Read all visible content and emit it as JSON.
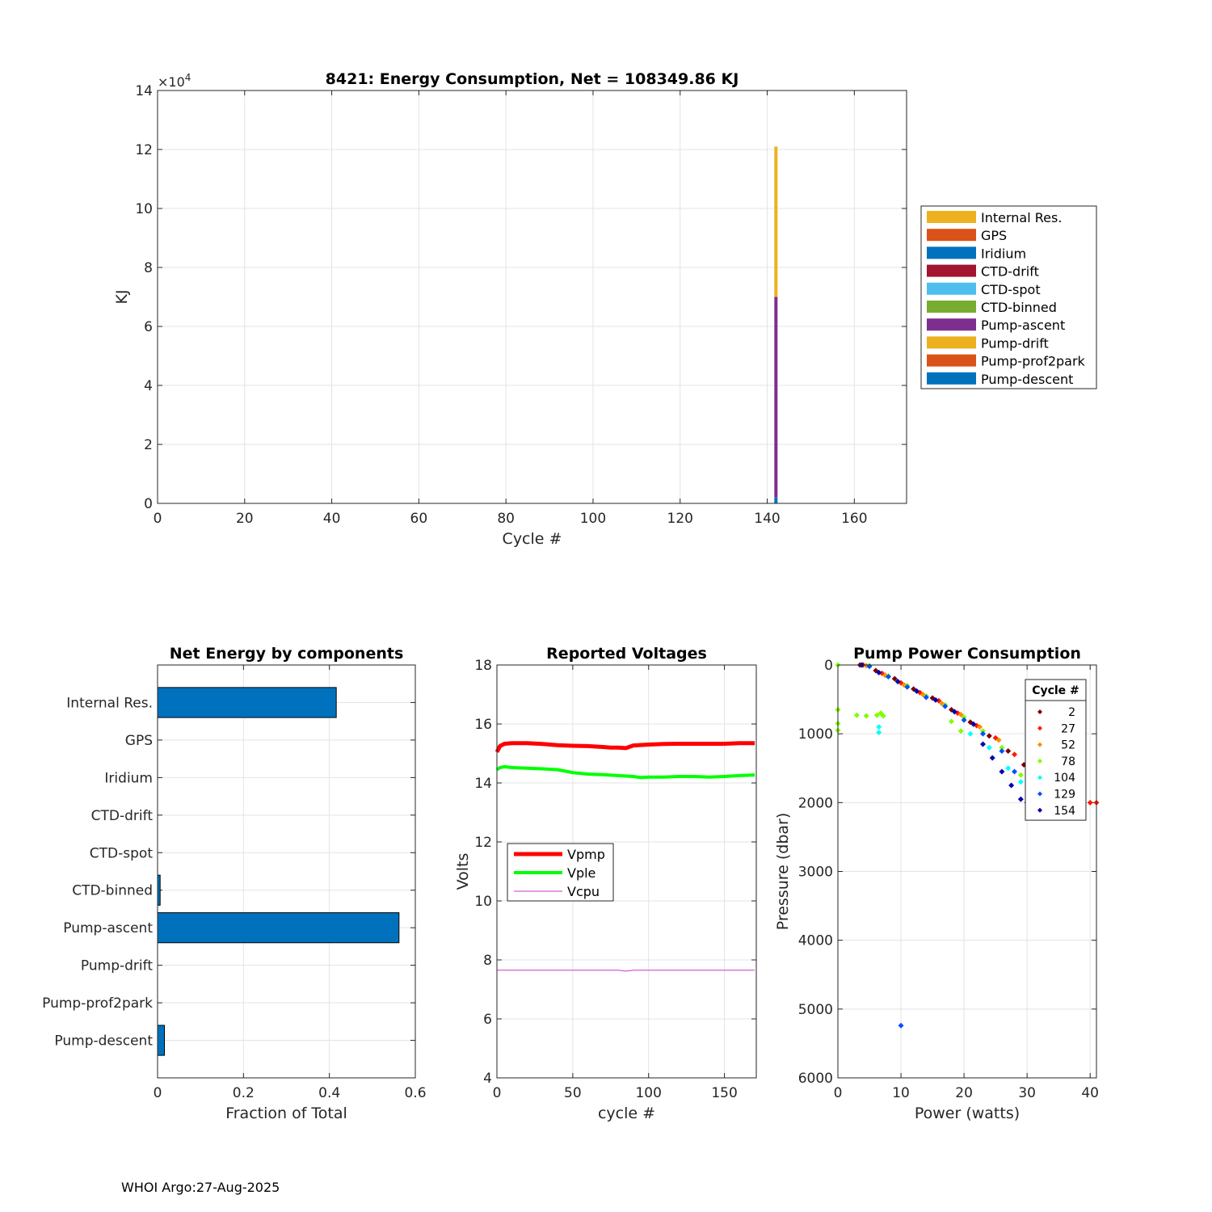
{
  "footer": "WHOI Argo:27-Aug-2025",
  "chart_data": [
    {
      "id": "energy",
      "type": "bar",
      "stacked": true,
      "title": "8421: Energy Consumption,  Net = 108349.86 KJ",
      "xlabel": "Cycle #",
      "ylabel": "KJ",
      "y_exponent_label": "×10",
      "y_exponent": "4",
      "xlim": [
        0,
        172
      ],
      "ylim": [
        0,
        14
      ],
      "xticks": [
        0,
        20,
        40,
        60,
        80,
        100,
        120,
        140,
        160
      ],
      "yticks": [
        0,
        2,
        4,
        6,
        8,
        10,
        12,
        14
      ],
      "grid": true,
      "legend_position": "outside-right",
      "legend": [
        {
          "name": "Internal Res.",
          "color": "#EDB120"
        },
        {
          "name": "GPS",
          "color": "#D95319"
        },
        {
          "name": "Iridium",
          "color": "#0072BD"
        },
        {
          "name": "CTD-drift",
          "color": "#A2142F"
        },
        {
          "name": "CTD-spot",
          "color": "#4DBEEE"
        },
        {
          "name": "CTD-binned",
          "color": "#77AC30"
        },
        {
          "name": "Pump-ascent",
          "color": "#7E2F8E"
        },
        {
          "name": "Pump-drift",
          "color": "#EDB120"
        },
        {
          "name": "Pump-prof2park",
          "color": "#D95319"
        },
        {
          "name": "Pump-descent",
          "color": "#0072BD"
        }
      ],
      "bars": [
        {
          "cycle": 142,
          "segments": [
            {
              "component": "Pump-descent",
              "from": 0,
              "to": 0.2,
              "color": "#0072BD"
            },
            {
              "component": "Pump-ascent",
              "from": 0.2,
              "to": 7.0,
              "color": "#7E2F8E"
            },
            {
              "component": "Internal Res.",
              "from": 7.0,
              "to": 12.1,
              "color": "#EDB120"
            }
          ]
        }
      ]
    },
    {
      "id": "fraction",
      "type": "bar",
      "orientation": "horizontal",
      "title": "Net Energy by components",
      "xlabel": "Fraction of Total",
      "xlim": [
        0,
        0.6
      ],
      "xticks": [
        0,
        0.2,
        0.4,
        0.6
      ],
      "grid": true,
      "color": "#0072BD",
      "categories": [
        "Internal Res.",
        "GPS",
        "Iridium",
        "CTD-drift",
        "CTD-spot",
        "CTD-binned",
        "Pump-ascent",
        "Pump-drift",
        "Pump-prof2park",
        "Pump-descent"
      ],
      "values": [
        0.416,
        0,
        0,
        0,
        0,
        0.006,
        0.562,
        0,
        0,
        0.016
      ]
    },
    {
      "id": "voltages",
      "type": "line",
      "title": "Reported Voltages",
      "xlabel": "cycle #",
      "ylabel": "Volts",
      "xlim": [
        0,
        171
      ],
      "ylim": [
        4,
        18
      ],
      "xticks": [
        0,
        50,
        100,
        150
      ],
      "yticks": [
        4,
        6,
        8,
        10,
        12,
        14,
        16,
        18
      ],
      "grid": true,
      "legend_position": "middle-left",
      "series": [
        {
          "name": "Vpmp",
          "color": "#FF0000",
          "width": 5,
          "x": [
            0,
            2,
            5,
            10,
            20,
            30,
            40,
            50,
            60,
            70,
            75,
            80,
            85,
            90,
            100,
            110,
            120,
            130,
            140,
            150,
            160,
            170
          ],
          "y": [
            15.05,
            15.25,
            15.33,
            15.35,
            15.35,
            15.32,
            15.28,
            15.26,
            15.25,
            15.22,
            15.2,
            15.2,
            15.18,
            15.27,
            15.3,
            15.32,
            15.33,
            15.33,
            15.33,
            15.33,
            15.35,
            15.35
          ]
        },
        {
          "name": "Vple",
          "color": "#00FF00",
          "width": 4,
          "x": [
            0,
            2,
            5,
            10,
            20,
            30,
            40,
            50,
            60,
            70,
            80,
            90,
            95,
            100,
            110,
            120,
            130,
            140,
            150,
            160,
            170
          ],
          "y": [
            14.45,
            14.52,
            14.55,
            14.52,
            14.5,
            14.48,
            14.45,
            14.35,
            14.3,
            14.28,
            14.25,
            14.22,
            14.18,
            14.2,
            14.2,
            14.22,
            14.22,
            14.2,
            14.22,
            14.25,
            14.27
          ]
        },
        {
          "name": "Vcpu",
          "color": "#CC33CC",
          "width": 1,
          "x": [
            0,
            80,
            85,
            90,
            170
          ],
          "y": [
            7.65,
            7.65,
            7.62,
            7.65,
            7.65
          ]
        }
      ]
    },
    {
      "id": "pump",
      "type": "scatter",
      "title": "Pump Power Consumption",
      "xlabel": "Power (watts)",
      "ylabel": "Pressure (dbar)",
      "xlim": [
        0,
        41
      ],
      "ylim": [
        0,
        6000
      ],
      "y_reversed": true,
      "xticks": [
        0,
        10,
        20,
        30,
        40
      ],
      "yticks": [
        0,
        1000,
        2000,
        3000,
        4000,
        5000,
        6000
      ],
      "grid": true,
      "legend_title": "Cycle #",
      "legend_position": "top-right",
      "series": [
        {
          "name": "2",
          "color": "#7A0000",
          "x": [
            3.5,
            6,
            9,
            12,
            15,
            18,
            21,
            24,
            27,
            29.5
          ],
          "y": [
            0,
            80,
            200,
            350,
            480,
            650,
            830,
            1030,
            1250,
            1450
          ]
        },
        {
          "name": "27",
          "color": "#FF1A00",
          "x": [
            4,
            7,
            10,
            13,
            16,
            19,
            22,
            25,
            28,
            39,
            40,
            41
          ],
          "y": [
            0,
            120,
            260,
            400,
            520,
            700,
            880,
            1060,
            1300,
            2000,
            2000,
            2000
          ]
        },
        {
          "name": "52",
          "color": "#FF8C00",
          "x": [
            4.5,
            7.5,
            10.5,
            13.5,
            16.5,
            19.5,
            22.5,
            25.5
          ],
          "y": [
            10,
            150,
            290,
            430,
            560,
            720,
            900,
            1090
          ]
        },
        {
          "name": "78",
          "color": "#7FFF00",
          "x": [
            0,
            0,
            0,
            0,
            3,
            4.5,
            6.2,
            6.8,
            7.2,
            5,
            8,
            11,
            14,
            17,
            20,
            23,
            26,
            29,
            18,
            19.5
          ],
          "y": [
            0,
            650,
            850,
            950,
            730,
            740,
            730,
            700,
            740,
            10,
            160,
            300,
            450,
            580,
            760,
            960,
            1200,
            1600,
            820,
            960
          ]
        },
        {
          "name": "104",
          "color": "#00FFFF",
          "x": [
            6.5,
            6.5,
            21,
            24,
            27,
            29
          ],
          "y": [
            900,
            980,
            1000,
            1200,
            1500,
            1700
          ]
        },
        {
          "name": "129",
          "color": "#0050FF",
          "x": [
            5,
            8,
            11,
            14,
            17,
            20,
            23,
            26,
            28,
            10
          ],
          "y": [
            20,
            170,
            320,
            470,
            600,
            800,
            1000,
            1250,
            1550,
            5240
          ]
        },
        {
          "name": "154",
          "color": "#0000B0",
          "x": [
            3.8,
            6.5,
            9.5,
            12.5,
            15.5,
            18.5,
            21.5,
            23,
            24.5,
            26,
            27.5,
            29,
            30
          ],
          "y": [
            0,
            110,
            240,
            380,
            510,
            680,
            860,
            1150,
            1350,
            1550,
            1750,
            1950,
            2000
          ]
        }
      ]
    }
  ]
}
